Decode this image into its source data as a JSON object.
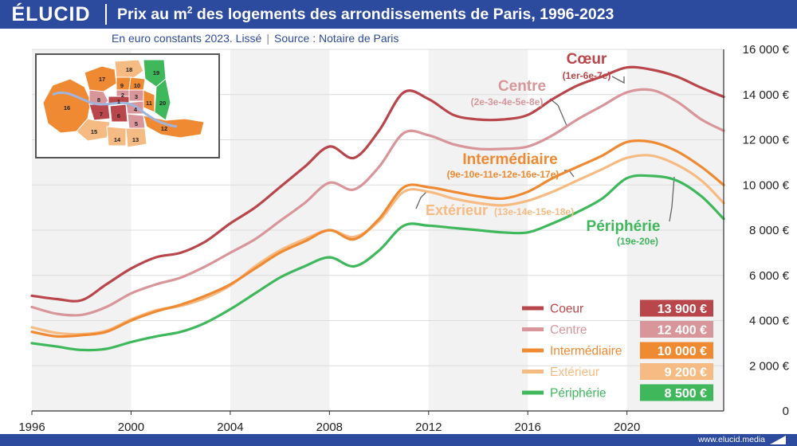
{
  "header": {
    "logo": "ÉLUCID",
    "title_pre": "Prix au m",
    "title_sup": "2",
    "title_post": " des logements des arrondissements de Paris, 1996-2023",
    "subtitle": "En euro constants 2023. Lissé",
    "source": "Source : Notaire de Paris"
  },
  "footer": {
    "url": "www.elucid.media"
  },
  "map": {
    "districts": [
      "1",
      "2",
      "3",
      "4",
      "5",
      "6",
      "7",
      "8",
      "9",
      "10",
      "11",
      "12",
      "13",
      "14",
      "15",
      "16",
      "17",
      "18",
      "19",
      "20"
    ]
  },
  "chart_data": {
    "type": "line",
    "x": [
      1996,
      1997,
      1998,
      1999,
      2000,
      2001,
      2002,
      2003,
      2004,
      2005,
      2006,
      2007,
      2008,
      2009,
      2010,
      2011,
      2012,
      2013,
      2014,
      2015,
      2016,
      2017,
      2018,
      2019,
      2020,
      2021,
      2022,
      2023,
      2023.9
    ],
    "xlim": [
      1996,
      2023.9
    ],
    "ylim": [
      0,
      16000
    ],
    "x_ticks": [
      "1996",
      "2000",
      "2004",
      "2008",
      "2012",
      "2016",
      "2020"
    ],
    "y_ticks": [
      "0",
      "2 000 €",
      "4 000 €",
      "6 000 €",
      "8 000 €",
      "10 000 €",
      "12 000 €",
      "14 000 €",
      "16 000 €"
    ],
    "grid": true,
    "shaded_bands": [
      [
        1996,
        2000
      ],
      [
        2004,
        2008
      ],
      [
        2012,
        2016
      ],
      [
        2020,
        2023.9
      ]
    ],
    "series": [
      {
        "name": "Coeur",
        "color": "#b8464b",
        "label": "Cœur",
        "sublabel": "(1er-6e-7e)",
        "values": [
          5100,
          4950,
          4900,
          5600,
          6300,
          6800,
          7000,
          7500,
          8300,
          9000,
          9900,
          10800,
          11700,
          11200,
          12400,
          14100,
          13800,
          13100,
          12900,
          12900,
          13100,
          13800,
          14400,
          14800,
          15200,
          15100,
          14800,
          14300,
          13900
        ]
      },
      {
        "name": "Centre",
        "color": "#d8969a",
        "label": "Centre",
        "sublabel": "(2e-3e-4e-5e-8e)",
        "values": [
          4600,
          4300,
          4250,
          4600,
          5200,
          5600,
          5900,
          6400,
          7000,
          7600,
          8400,
          9200,
          10100,
          9800,
          10800,
          12300,
          12200,
          11800,
          11600,
          11600,
          11700,
          12200,
          12900,
          13500,
          14100,
          14200,
          13700,
          12900,
          12400
        ]
      },
      {
        "name": "Intermédiaire",
        "color": "#ef8a33",
        "label": "Intermédiaire",
        "sublabel": "(9e-10e-11e-12e-16e-17e)",
        "values": [
          3500,
          3300,
          3350,
          3500,
          4000,
          4400,
          4700,
          5100,
          5600,
          6300,
          7000,
          7500,
          8000,
          7600,
          8500,
          9900,
          9900,
          9700,
          9500,
          9400,
          9700,
          10300,
          10800,
          11300,
          11900,
          11900,
          11500,
          10800,
          10000
        ]
      },
      {
        "name": "Extérieur",
        "color": "#f6bb82",
        "label": "Extérieur",
        "sublabel": "(13e-14e-15e-18e)",
        "values": [
          3700,
          3450,
          3400,
          3550,
          4050,
          4450,
          4650,
          5000,
          5550,
          6400,
          7100,
          7600,
          8000,
          7700,
          8400,
          9700,
          9700,
          9400,
          9200,
          9100,
          9300,
          9700,
          10200,
          10700,
          11200,
          11300,
          10900,
          10200,
          9200
        ]
      },
      {
        "name": "Périphérie",
        "color": "#3fb85c",
        "label": "Périphérie",
        "sublabel": "(19e-20e)",
        "values": [
          3000,
          2850,
          2700,
          2750,
          3050,
          3300,
          3500,
          3900,
          4500,
          5200,
          5900,
          6400,
          6800,
          6400,
          7100,
          8200,
          8200,
          8100,
          8000,
          7900,
          7900,
          8300,
          8800,
          9400,
          10300,
          10400,
          10200,
          9500,
          8500
        ]
      }
    ],
    "legend": [
      {
        "name": "Coeur",
        "value": "13 900 €",
        "color": "#b8464b"
      },
      {
        "name": "Centre",
        "value": "12 400 €",
        "color": "#d8969a"
      },
      {
        "name": "Intermédiaire",
        "value": "10 000 €",
        "color": "#ef8a33"
      },
      {
        "name": "Extérieur",
        "value": "9 200 €",
        "color": "#f6bb82"
      },
      {
        "name": "Périphérie",
        "value": "8 500 €",
        "color": "#3fb85c"
      }
    ],
    "legend_position": "bottom-right"
  }
}
